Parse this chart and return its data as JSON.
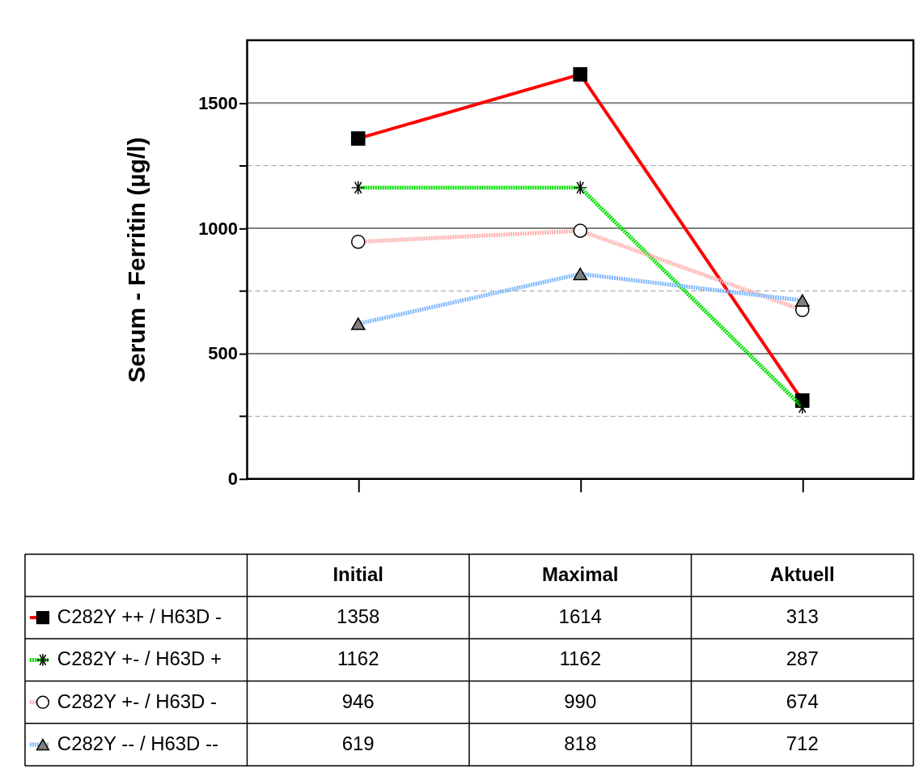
{
  "chart_data": {
    "type": "line",
    "ylabel": "Serum - Ferritin (µg/l)",
    "categories": [
      "Initial",
      "Maximal",
      "Aktuell"
    ],
    "ylim": [
      0,
      1750
    ],
    "yticks": [
      0,
      {
        "value": 250,
        "label": null
      },
      500,
      {
        "value": 750,
        "label": null
      },
      1000,
      {
        "value": 1250,
        "label": null
      },
      1500
    ],
    "grid": "y",
    "tick_labels": "y",
    "legend": "bottom",
    "data_labels": true,
    "series": [
      {
        "name": "C282Y ++ / H63D -",
        "color": "#ff0000",
        "marker": "square",
        "line_style": "solid",
        "values": [
          1358,
          1614,
          313
        ]
      },
      {
        "name": "C282Y +- / H63D +",
        "color": "#00e000",
        "marker": "cross",
        "line_style": "dotted",
        "values": [
          1162,
          1162,
          287
        ]
      },
      {
        "name": "C282Y +- / H63D -",
        "color": "#ffb0b0",
        "marker": "circle",
        "line_style": "dotted",
        "values": [
          946,
          990,
          674
        ]
      },
      {
        "name": "C282Y -- / H63D --",
        "color": "#80b8ff",
        "marker": "triangle",
        "line_style": "dotted",
        "values": [
          619,
          818,
          712
        ]
      }
    ]
  }
}
